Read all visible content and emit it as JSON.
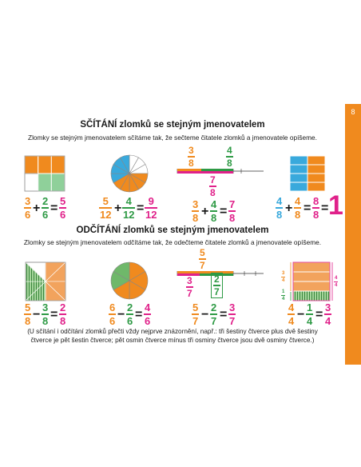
{
  "page_number": "8",
  "addition": {
    "heading": "SČÍTÁNÍ zlomků se stejným jmenovatelem",
    "rule": "Zlomky se stejným jmenovatelem sčítáme tak, že sečteme čitatele zlomků a jmenovatele opíšeme.",
    "ex1": {
      "a": [
        "3",
        "6"
      ],
      "b": [
        "2",
        "6"
      ],
      "r": [
        "5",
        "6"
      ],
      "op": "+",
      "eq": "="
    },
    "ex2": {
      "a": [
        "5",
        "12"
      ],
      "b": [
        "4",
        "12"
      ],
      "r": [
        "9",
        "12"
      ],
      "op": "+",
      "eq": "="
    },
    "ex3_top": {
      "a": [
        "3",
        "8"
      ],
      "b": [
        "4",
        "8"
      ],
      "sum": [
        "7",
        "8"
      ]
    },
    "ex3": {
      "a": [
        "3",
        "8"
      ],
      "b": [
        "4",
        "8"
      ],
      "r": [
        "7",
        "8"
      ],
      "op": "+",
      "eq": "="
    },
    "ex4": {
      "a": [
        "4",
        "8"
      ],
      "b": [
        "4",
        "8"
      ],
      "r": [
        "8",
        "8"
      ],
      "one": "1",
      "op": "+",
      "eq": "=",
      "eq2": "="
    }
  },
  "subtraction": {
    "heading": "ODČÍTÁNÍ zlomků se stejným jmenovatelem",
    "rule": "Zlomky se stejným jmenovatelem odčítáme tak, že odečteme čitatele zlomků a jmenovatele opíšeme.",
    "ex1": {
      "a": [
        "5",
        "8"
      ],
      "b": [
        "3",
        "8"
      ],
      "r": [
        "2",
        "8"
      ],
      "op": "−",
      "eq": "="
    },
    "ex2": {
      "a": [
        "6",
        "6"
      ],
      "b": [
        "2",
        "6"
      ],
      "r": [
        "4",
        "6"
      ],
      "op": "−",
      "eq": "="
    },
    "ex3_top": {
      "total": [
        "5",
        "7"
      ],
      "a": [
        "3",
        "7"
      ],
      "b": [
        "2",
        "7"
      ]
    },
    "ex3": {
      "a": [
        "5",
        "7"
      ],
      "b": [
        "2",
        "7"
      ],
      "r": [
        "3",
        "7"
      ],
      "op": "−",
      "eq": "="
    },
    "ex4_side": {
      "a": [
        "3",
        "4"
      ],
      "b": [
        "1",
        "4"
      ],
      "c": [
        "4",
        "4"
      ]
    },
    "ex4": {
      "a": [
        "4",
        "4"
      ],
      "b": [
        "1",
        "4"
      ],
      "r": [
        "3",
        "4"
      ],
      "op": "−",
      "eq": "="
    }
  },
  "note": "(U sčítání i odčítání zlomků přečti vždy nejprve znázornění, např.: tři šestiny čtverce plus dvě šestiny čtverce je pět šestin čtverce; pět osmin čtverce mínus tři osminy čtverce jsou dvě osminy čtverce.)",
  "colors": {
    "orange": "#f08a1e",
    "pink": "#e0218a",
    "green": "#2e9a45",
    "light_green": "#a5d59b",
    "blue": "#39a9dc",
    "sidebar": "#f08a1e"
  }
}
